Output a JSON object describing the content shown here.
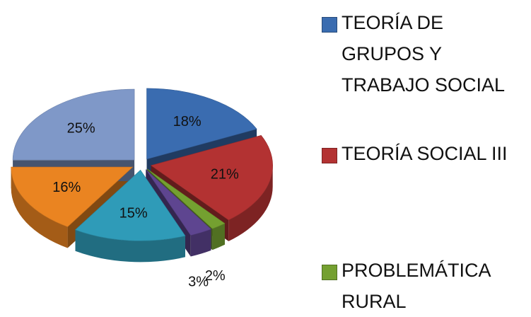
{
  "chart_data": {
    "type": "pie3d",
    "categories": [
      "TEORÍA DE GRUPOS Y TRABAJO SOCIAL",
      "TEORÍA SOCIAL III",
      "PROBLEMÁTICA RURAL",
      null,
      null,
      null,
      null
    ],
    "values": [
      18,
      21,
      2,
      3,
      15,
      16,
      25
    ],
    "value_labels": [
      "18%",
      "21%",
      "2%",
      "3%",
      "15%",
      "16%",
      "25%"
    ],
    "colors": [
      "#3a6cb0",
      "#b33232",
      "#74a030",
      "#5e4590",
      "#2f9bb8",
      "#ea8421",
      "#7f98c8"
    ],
    "legend": [
      0,
      1,
      2
    ]
  }
}
